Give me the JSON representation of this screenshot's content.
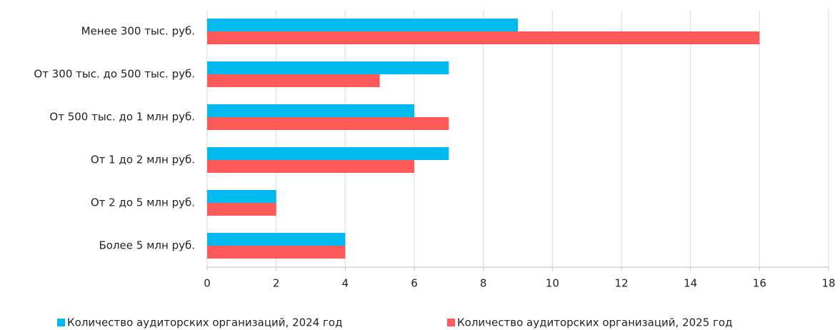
{
  "chart_data": {
    "type": "bar",
    "orientation": "horizontal",
    "categories": [
      "Менее 300 тыс. руб.",
      "От 300 тыс. до 500 тыс. руб.",
      "От 500 тыс.  до 1 млн руб.",
      "От 1 до 2 млн руб.",
      "От 2 до 5 млн руб.",
      "Более 5 млн руб."
    ],
    "series": [
      {
        "name": "Количество аудиторских организаций, 2024 год",
        "color": "#00b9ef",
        "values": [
          9,
          7,
          6,
          7,
          2,
          4
        ]
      },
      {
        "name": "Количество аудиторских организаций, 2025 год",
        "color": "#ff5a5a",
        "values": [
          16,
          5,
          7,
          6,
          2,
          4
        ]
      }
    ],
    "xlim": [
      0,
      18
    ],
    "xticks": [
      0,
      2,
      4,
      6,
      8,
      10,
      12,
      14,
      16,
      18
    ],
    "grid": true,
    "legend": "bottom"
  }
}
